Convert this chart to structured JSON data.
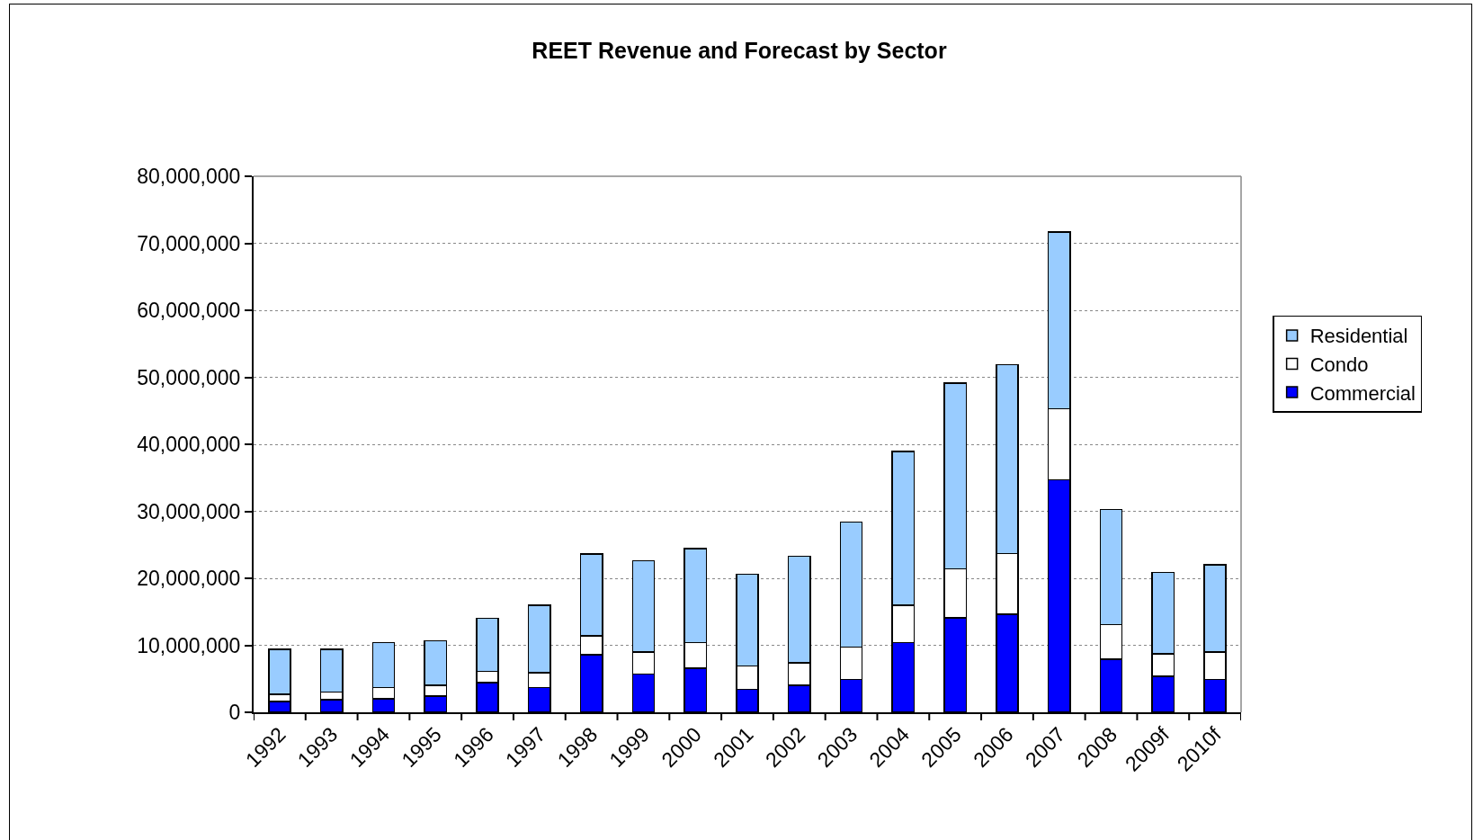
{
  "chart_data": {
    "type": "bar",
    "title": "REET Revenue and Forecast by Sector",
    "stacked": true,
    "categories": [
      "1992",
      "1993",
      "1994",
      "1995",
      "1996",
      "1997",
      "1998",
      "1999",
      "2000",
      "2001",
      "2002",
      "2003",
      "2004",
      "2005",
      "2006",
      "2007",
      "2008",
      "2009f",
      "2010f"
    ],
    "series": [
      {
        "name": "Commercial",
        "color": "#0000ff",
        "values": [
          1600000,
          1900000,
          2000000,
          2400000,
          4400000,
          3700000,
          8600000,
          5700000,
          6600000,
          3400000,
          4000000,
          4900000,
          10400000,
          14100000,
          14600000,
          34700000,
          7900000,
          5400000,
          4900000
        ]
      },
      {
        "name": "Condo",
        "color": "#ffffff",
        "values": [
          1100000,
          1100000,
          1700000,
          1600000,
          1700000,
          2200000,
          2800000,
          3300000,
          3800000,
          3500000,
          3400000,
          4800000,
          5600000,
          7300000,
          9100000,
          10600000,
          5200000,
          3300000,
          4100000
        ]
      },
      {
        "name": "Residential",
        "color": "#99ccff",
        "values": [
          6700000,
          6400000,
          6700000,
          6700000,
          7900000,
          10100000,
          12200000,
          13600000,
          14000000,
          13700000,
          15900000,
          18700000,
          22900000,
          27700000,
          28200000,
          26400000,
          17200000,
          12200000,
          13000000
        ]
      }
    ],
    "ylim": [
      0,
      80000000
    ],
    "yticks": [
      {
        "value": 0,
        "label": "0"
      },
      {
        "value": 10000000,
        "label": "10,000,000"
      },
      {
        "value": 20000000,
        "label": "20,000,000"
      },
      {
        "value": 30000000,
        "label": "30,000,000"
      },
      {
        "value": 40000000,
        "label": "40,000,000"
      },
      {
        "value": 50000000,
        "label": "50,000,000"
      },
      {
        "value": 60000000,
        "label": "60,000,000"
      },
      {
        "value": 70000000,
        "label": "70,000,000"
      },
      {
        "value": 80000000,
        "label": "80,000,000"
      }
    ],
    "grid": "y",
    "legend": "right"
  }
}
